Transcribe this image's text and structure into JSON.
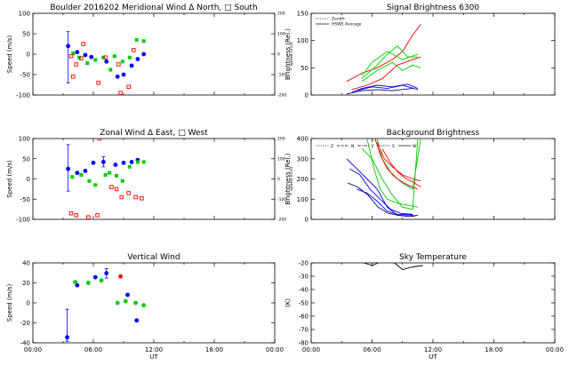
{
  "chart_data": [
    {
      "id": "meridional",
      "type": "scatter",
      "title": "Boulder   2016202     Meridional Wind   Δ North, □ South",
      "ylabel": "Speed (m/s)",
      "ylabel_right": "Speed (m/s)",
      "xlim": [
        0,
        24
      ],
      "ylim": [
        -100,
        100
      ],
      "ylim_right": [
        -200,
        200
      ],
      "yticks": [
        "-100",
        "-50",
        "0",
        "50",
        "100"
      ],
      "yticks_right": [
        "-200",
        "-100",
        "0",
        "100",
        "200"
      ],
      "series": [
        {
          "color": "#0000ff",
          "shape": "circle",
          "points": [
            [
              3.5,
              20
            ],
            [
              4.4,
              5
            ],
            [
              5.2,
              -2
            ],
            [
              5.8,
              -7
            ],
            [
              7.3,
              -18
            ],
            [
              8.4,
              -55
            ],
            [
              9.0,
              -50
            ],
            [
              9.8,
              -28
            ],
            [
              10.4,
              -12
            ],
            [
              11.0,
              0
            ]
          ],
          "errors": [
            [
              3.5,
              -70,
              55
            ]
          ]
        },
        {
          "color": "#00cc00",
          "shape": "square",
          "points": [
            [
              4.0,
              2
            ],
            [
              4.6,
              -8
            ],
            [
              5.4,
              -22
            ],
            [
              6.2,
              -14
            ],
            [
              7.0,
              -8
            ],
            [
              7.7,
              -38
            ],
            [
              8.1,
              -5
            ],
            [
              8.9,
              -18
            ],
            [
              9.6,
              -8
            ],
            [
              10.3,
              35
            ],
            [
              11.0,
              32
            ]
          ]
        },
        {
          "color": "#ff0000",
          "shape": "open-square",
          "points": [
            [
              3.8,
              -5
            ],
            [
              4.3,
              -25
            ],
            [
              4.8,
              -10
            ],
            [
              5.0,
              25
            ],
            [
              4.0,
              -55
            ],
            [
              6.5,
              -70
            ],
            [
              7.2,
              -8
            ],
            [
              8.5,
              -25
            ],
            [
              8.7,
              -95
            ],
            [
              9.5,
              -80
            ],
            [
              10.0,
              10
            ]
          ]
        }
      ]
    },
    {
      "id": "signal",
      "type": "line",
      "title": "Signal Brightness        6300",
      "ylabel": "Brightness (Rel.)",
      "xlim": [
        0,
        24
      ],
      "ylim": [
        0,
        150
      ],
      "yticks": [
        "0",
        "50",
        "100",
        "150"
      ],
      "legend": [
        {
          "label": "Zenith",
          "style": "dotted"
        },
        {
          "label": "HSWE Average",
          "style": "solid"
        }
      ],
      "series": [
        {
          "color": "#ff0000",
          "points": [
            [
              3.5,
              25
            ],
            [
              5,
              40
            ],
            [
              6.5,
              50
            ],
            [
              8,
              65
            ],
            [
              9,
              80
            ],
            [
              10,
              110
            ],
            [
              10.8,
              130
            ]
          ]
        },
        {
          "color": "#ff0000",
          "points": [
            [
              4,
              10
            ],
            [
              5.5,
              18
            ],
            [
              7,
              30
            ],
            [
              8.5,
              55
            ],
            [
              10,
              65
            ],
            [
              10.8,
              70
            ]
          ]
        },
        {
          "color": "#00cc00",
          "points": [
            [
              5,
              30
            ],
            [
              6.5,
              55
            ],
            [
              7.5,
              75
            ],
            [
              8.5,
              90
            ],
            [
              9.5,
              70
            ],
            [
              10.5,
              70
            ]
          ]
        },
        {
          "color": "#00cc00",
          "points": [
            [
              5,
              25
            ],
            [
              6.5,
              45
            ],
            [
              8,
              60
            ],
            [
              9,
              45
            ],
            [
              10,
              55
            ],
            [
              10.8,
              50
            ]
          ]
        },
        {
          "color": "#00cc00",
          "points": [
            [
              5,
              35
            ],
            [
              6,
              60
            ],
            [
              7.5,
              80
            ],
            [
              9,
              65
            ],
            [
              10.5,
              75
            ]
          ]
        },
        {
          "color": "#0000ff",
          "points": [
            [
              4,
              5
            ],
            [
              5,
              12
            ],
            [
              6.5,
              18
            ],
            [
              8,
              15
            ],
            [
              9.5,
              20
            ],
            [
              10.5,
              12
            ]
          ]
        },
        {
          "color": "#0000ff",
          "points": [
            [
              4.5,
              8
            ],
            [
              6,
              15
            ],
            [
              7.5,
              12
            ],
            [
              9,
              18
            ],
            [
              10.5,
              10
            ]
          ]
        },
        {
          "color": "#000080",
          "points": [
            [
              3.5,
              2
            ],
            [
              5,
              8
            ],
            [
              6.5,
              10
            ],
            [
              8,
              8
            ],
            [
              10,
              12
            ]
          ]
        }
      ]
    },
    {
      "id": "zonal",
      "type": "scatter",
      "title": "Zonal Wind      Δ East,  □ West",
      "ylabel": "Speed (m/s)",
      "ylabel_right": "Speed (m/s)",
      "xlim": [
        0,
        24
      ],
      "ylim": [
        -100,
        100
      ],
      "ylim_right": [
        -200,
        200
      ],
      "yticks": [
        "-100",
        "-50",
        "0",
        "50",
        "100"
      ],
      "yticks_right": [
        "-200",
        "-100",
        "0",
        "100",
        "200"
      ],
      "series": [
        {
          "color": "#0000ff",
          "shape": "circle",
          "points": [
            [
              3.5,
              25
            ],
            [
              4.4,
              15
            ],
            [
              5.2,
              20
            ],
            [
              6.0,
              40
            ],
            [
              7.0,
              42
            ],
            [
              8.2,
              35
            ],
            [
              9.0,
              40
            ],
            [
              9.8,
              42
            ],
            [
              10.4,
              47
            ]
          ],
          "errors": [
            [
              3.5,
              -30,
              85
            ],
            [
              7.0,
              30,
              55
            ]
          ]
        },
        {
          "color": "#00cc00",
          "shape": "square",
          "points": [
            [
              3.9,
              5
            ],
            [
              4.8,
              10
            ],
            [
              5.6,
              -5
            ],
            [
              6.2,
              -15
            ],
            [
              7.2,
              10
            ],
            [
              7.6,
              15
            ],
            [
              8.3,
              8
            ],
            [
              8.9,
              -5
            ],
            [
              9.6,
              30
            ],
            [
              10.4,
              42
            ],
            [
              11.0,
              42
            ]
          ]
        },
        {
          "color": "#ff0000",
          "shape": "open-square",
          "points": [
            [
              3.8,
              -85
            ],
            [
              4.3,
              -90
            ],
            [
              5.5,
              -95
            ],
            [
              6.4,
              -90
            ],
            [
              6.6,
              100
            ],
            [
              7.8,
              -20
            ],
            [
              8.3,
              -25
            ],
            [
              8.8,
              -45
            ],
            [
              9.5,
              -35
            ],
            [
              10.2,
              -45
            ],
            [
              10.8,
              -48
            ]
          ]
        }
      ]
    },
    {
      "id": "background",
      "type": "line",
      "title": "Background Brightness",
      "ylabel": "Brightness (Rel.)",
      "xlim": [
        0,
        24
      ],
      "ylim": [
        0,
        400
      ],
      "yticks": [
        "0",
        "100",
        "200",
        "300",
        "400"
      ],
      "legend": [
        {
          "label": "Z"
        },
        {
          "label": "N"
        },
        {
          "label": "E"
        },
        {
          "label": "S"
        },
        {
          "label": "W"
        }
      ],
      "series": [
        {
          "color": "#00cc00",
          "points": [
            [
              5.5,
              400
            ],
            [
              6.2,
              250
            ],
            [
              6.8,
              150
            ],
            [
              7.5,
              100
            ],
            [
              8.5,
              80
            ],
            [
              9.5,
              70
            ],
            [
              10.5,
              60
            ]
          ]
        },
        {
          "color": "#00cc00",
          "points": [
            [
              5,
              350
            ],
            [
              6,
              300
            ],
            [
              7,
              200
            ],
            [
              8,
              120
            ],
            [
              9,
              60
            ],
            [
              10,
              50
            ],
            [
              10.5,
              400
            ]
          ]
        },
        {
          "color": "#00cc00",
          "points": [
            [
              6.5,
              400
            ],
            [
              7,
              300
            ],
            [
              8,
              220
            ],
            [
              9,
              180
            ],
            [
              10,
              150
            ],
            [
              10.8,
              400
            ]
          ]
        },
        {
          "color": "#ff0000",
          "points": [
            [
              6.3,
              400
            ],
            [
              6.8,
              320
            ],
            [
              7.5,
              250
            ],
            [
              8.5,
              200
            ],
            [
              9.5,
              170
            ],
            [
              10.5,
              150
            ]
          ]
        },
        {
          "color": "#ff0000",
          "points": [
            [
              7,
              350
            ],
            [
              7.8,
              280
            ],
            [
              8.6,
              230
            ],
            [
              9.4,
              200
            ],
            [
              10.2,
              180
            ],
            [
              10.8,
              160
            ]
          ]
        },
        {
          "color": "#ff0000",
          "points": [
            [
              6.5,
              380
            ],
            [
              7.2,
              300
            ],
            [
              8,
              260
            ],
            [
              9,
              220
            ],
            [
              10,
              200
            ],
            [
              10.8,
              190
            ]
          ]
        },
        {
          "color": "#0000ff",
          "points": [
            [
              3.5,
              300
            ],
            [
              4.5,
              250
            ],
            [
              5.5,
              200
            ],
            [
              6.5,
              150
            ],
            [
              7.5,
              60
            ],
            [
              8.5,
              20
            ],
            [
              9.5,
              15
            ],
            [
              10.5,
              20
            ]
          ]
        },
        {
          "color": "#0000ff",
          "points": [
            [
              3.8,
              250
            ],
            [
              4.8,
              220
            ],
            [
              5.8,
              150
            ],
            [
              6.8,
              100
            ],
            [
              7.8,
              50
            ],
            [
              8.8,
              30
            ],
            [
              10,
              25
            ]
          ]
        },
        {
          "color": "#000080",
          "points": [
            [
              3.6,
              180
            ],
            [
              4.6,
              160
            ],
            [
              5.6,
              120
            ],
            [
              6.6,
              60
            ],
            [
              7.6,
              30
            ],
            [
              8.6,
              20
            ],
            [
              10.2,
              15
            ]
          ]
        },
        {
          "color": "#0000ff",
          "points": [
            [
              4.5,
              150
            ],
            [
              5.5,
              130
            ],
            [
              6.5,
              90
            ],
            [
              7.5,
              40
            ],
            [
              8.5,
              25
            ],
            [
              10,
              22
            ]
          ]
        }
      ]
    },
    {
      "id": "vertical",
      "type": "scatter",
      "title": "Vertical Wind",
      "ylabel": "Speed (m/s)",
      "xlabel": "UT",
      "xlim": [
        0,
        24
      ],
      "ylim": [
        -50,
        50
      ],
      "xticks": [
        "00:00",
        "06:00",
        "12:00",
        "18:00",
        "00:00"
      ],
      "yticks": [
        "-40",
        "-20",
        "0",
        "20",
        "40"
      ],
      "series": [
        {
          "color": "#0000ff",
          "shape": "circle",
          "points": [
            [
              3.4,
              -43
            ],
            [
              4.4,
              22
            ],
            [
              6.2,
              32
            ],
            [
              7.3,
              37
            ],
            [
              9.4,
              10
            ],
            [
              10.3,
              -22
            ]
          ],
          "errors": [
            [
              3.4,
              -48,
              -8
            ],
            [
              7.3,
              31,
              43
            ]
          ]
        },
        {
          "color": "#00cc00",
          "shape": "circle",
          "points": [
            [
              4.2,
              26
            ],
            [
              5.5,
              25
            ],
            [
              6.8,
              28
            ],
            [
              8.4,
              0
            ],
            [
              9.2,
              2
            ],
            [
              10.2,
              0
            ],
            [
              11.0,
              -3
            ]
          ]
        },
        {
          "color": "#ff0000",
          "shape": "circle",
          "points": [
            [
              8.7,
              33
            ]
          ]
        }
      ]
    },
    {
      "id": "skytemp",
      "type": "line",
      "title": "Sky Temperature",
      "ylabel": "(K)",
      "xlabel": "UT",
      "xlim": [
        0,
        24
      ],
      "ylim": [
        -80,
        -20
      ],
      "xticks": [
        "00:00",
        "06:00",
        "12:00",
        "18:00",
        "00:00"
      ],
      "yticks": [
        "-80",
        "-70",
        "-60",
        "-50",
        "-40",
        "-30",
        "-20"
      ],
      "series": [
        {
          "color": "#000000",
          "points": [
            [
              5.2,
              -20
            ],
            [
              6,
              -22
            ],
            [
              7.2,
              -18
            ],
            [
              8.2,
              -20
            ],
            [
              9.0,
              -25
            ],
            [
              10.0,
              -23
            ],
            [
              11.0,
              -22
            ]
          ]
        }
      ]
    }
  ]
}
